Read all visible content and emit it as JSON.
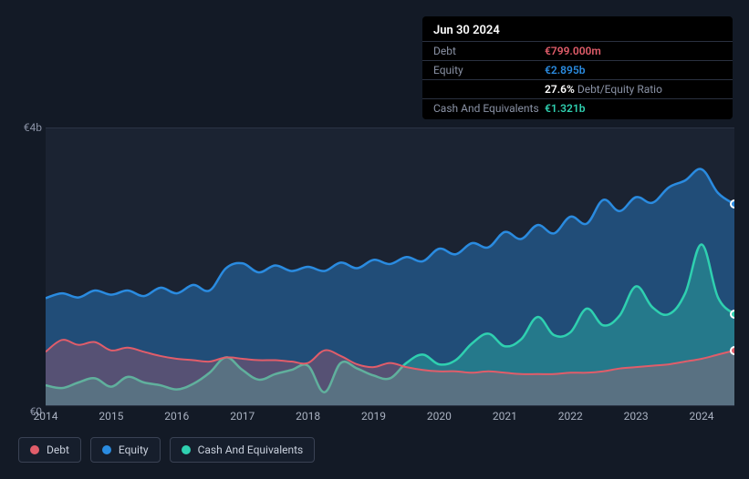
{
  "chart": {
    "type": "line-area",
    "background_color": "#131a26",
    "plot_background_color": "#1b2332",
    "grid_color": "#2b3444",
    "ymin": 0,
    "ymax": 4,
    "ylabels": {
      "top": "€4b",
      "bottom": "€0"
    },
    "xmin": 2014,
    "xmax": 2024.5,
    "xticks": [
      2014,
      2015,
      2016,
      2017,
      2018,
      2019,
      2020,
      2021,
      2022,
      2023,
      2024
    ],
    "series": {
      "debt": {
        "color": "#e15d6a",
        "fill_opacity": 0.28,
        "stroke_width": 2,
        "points": [
          [
            2014.0,
            0.78
          ],
          [
            2014.25,
            0.95
          ],
          [
            2014.5,
            0.88
          ],
          [
            2014.75,
            0.92
          ],
          [
            2015.0,
            0.8
          ],
          [
            2015.25,
            0.84
          ],
          [
            2015.5,
            0.78
          ],
          [
            2015.75,
            0.72
          ],
          [
            2016.0,
            0.68
          ],
          [
            2016.25,
            0.66
          ],
          [
            2016.5,
            0.64
          ],
          [
            2016.75,
            0.7
          ],
          [
            2017.0,
            0.68
          ],
          [
            2017.25,
            0.66
          ],
          [
            2017.5,
            0.66
          ],
          [
            2017.75,
            0.64
          ],
          [
            2018.0,
            0.62
          ],
          [
            2018.25,
            0.8
          ],
          [
            2018.5,
            0.72
          ],
          [
            2018.75,
            0.6
          ],
          [
            2019.0,
            0.56
          ],
          [
            2019.25,
            0.62
          ],
          [
            2019.5,
            0.56
          ],
          [
            2019.75,
            0.52
          ],
          [
            2020.0,
            0.5
          ],
          [
            2020.25,
            0.5
          ],
          [
            2020.5,
            0.48
          ],
          [
            2020.75,
            0.5
          ],
          [
            2021.0,
            0.48
          ],
          [
            2021.25,
            0.46
          ],
          [
            2021.5,
            0.46
          ],
          [
            2021.75,
            0.46
          ],
          [
            2022.0,
            0.48
          ],
          [
            2022.25,
            0.48
          ],
          [
            2022.5,
            0.5
          ],
          [
            2022.75,
            0.54
          ],
          [
            2023.0,
            0.56
          ],
          [
            2023.25,
            0.58
          ],
          [
            2023.5,
            0.6
          ],
          [
            2023.75,
            0.64
          ],
          [
            2024.0,
            0.68
          ],
          [
            2024.25,
            0.74
          ],
          [
            2024.5,
            0.8
          ]
        ]
      },
      "equity": {
        "color": "#2a8be0",
        "fill_opacity": 0.4,
        "stroke_width": 2.5,
        "points": [
          [
            2014.0,
            1.55
          ],
          [
            2014.25,
            1.62
          ],
          [
            2014.5,
            1.56
          ],
          [
            2014.75,
            1.66
          ],
          [
            2015.0,
            1.6
          ],
          [
            2015.25,
            1.66
          ],
          [
            2015.5,
            1.58
          ],
          [
            2015.75,
            1.7
          ],
          [
            2016.0,
            1.62
          ],
          [
            2016.25,
            1.74
          ],
          [
            2016.5,
            1.66
          ],
          [
            2016.75,
            1.98
          ],
          [
            2017.0,
            2.05
          ],
          [
            2017.25,
            1.92
          ],
          [
            2017.5,
            2.02
          ],
          [
            2017.75,
            1.94
          ],
          [
            2018.0,
            2.0
          ],
          [
            2018.25,
            1.94
          ],
          [
            2018.5,
            2.06
          ],
          [
            2018.75,
            1.98
          ],
          [
            2019.0,
            2.1
          ],
          [
            2019.25,
            2.04
          ],
          [
            2019.5,
            2.14
          ],
          [
            2019.75,
            2.08
          ],
          [
            2020.0,
            2.26
          ],
          [
            2020.25,
            2.18
          ],
          [
            2020.5,
            2.34
          ],
          [
            2020.75,
            2.28
          ],
          [
            2021.0,
            2.5
          ],
          [
            2021.25,
            2.4
          ],
          [
            2021.5,
            2.6
          ],
          [
            2021.75,
            2.48
          ],
          [
            2022.0,
            2.72
          ],
          [
            2022.25,
            2.62
          ],
          [
            2022.5,
            2.96
          ],
          [
            2022.75,
            2.8
          ],
          [
            2023.0,
            3.0
          ],
          [
            2023.25,
            2.92
          ],
          [
            2023.5,
            3.14
          ],
          [
            2023.75,
            3.24
          ],
          [
            2024.0,
            3.4
          ],
          [
            2024.25,
            3.06
          ],
          [
            2024.5,
            2.9
          ]
        ]
      },
      "cash": {
        "color": "#2fd0b0",
        "fill_opacity": 0.34,
        "stroke_width": 2.5,
        "points": [
          [
            2014.0,
            0.3
          ],
          [
            2014.25,
            0.26
          ],
          [
            2014.5,
            0.34
          ],
          [
            2014.75,
            0.4
          ],
          [
            2015.0,
            0.28
          ],
          [
            2015.25,
            0.42
          ],
          [
            2015.5,
            0.34
          ],
          [
            2015.75,
            0.3
          ],
          [
            2016.0,
            0.24
          ],
          [
            2016.25,
            0.32
          ],
          [
            2016.5,
            0.48
          ],
          [
            2016.75,
            0.7
          ],
          [
            2017.0,
            0.52
          ],
          [
            2017.25,
            0.38
          ],
          [
            2017.5,
            0.46
          ],
          [
            2017.75,
            0.52
          ],
          [
            2018.0,
            0.58
          ],
          [
            2018.25,
            0.2
          ],
          [
            2018.5,
            0.62
          ],
          [
            2018.75,
            0.54
          ],
          [
            2019.0,
            0.44
          ],
          [
            2019.25,
            0.4
          ],
          [
            2019.5,
            0.62
          ],
          [
            2019.75,
            0.74
          ],
          [
            2020.0,
            0.6
          ],
          [
            2020.25,
            0.66
          ],
          [
            2020.5,
            0.9
          ],
          [
            2020.75,
            1.04
          ],
          [
            2021.0,
            0.86
          ],
          [
            2021.25,
            0.96
          ],
          [
            2021.5,
            1.28
          ],
          [
            2021.75,
            1.02
          ],
          [
            2022.0,
            1.06
          ],
          [
            2022.25,
            1.4
          ],
          [
            2022.5,
            1.16
          ],
          [
            2022.75,
            1.3
          ],
          [
            2023.0,
            1.72
          ],
          [
            2023.25,
            1.42
          ],
          [
            2023.5,
            1.32
          ],
          [
            2023.75,
            1.62
          ],
          [
            2024.0,
            2.32
          ],
          [
            2024.25,
            1.56
          ],
          [
            2024.5,
            1.32
          ]
        ]
      }
    }
  },
  "tooltip": {
    "date": "Jun 30 2024",
    "rows": {
      "debt": {
        "label": "Debt",
        "value": "€799.000m"
      },
      "equity": {
        "label": "Equity",
        "value": "€2.895b"
      },
      "ratio": {
        "value": "27.6%",
        "suffix": "Debt/Equity Ratio"
      },
      "cash": {
        "label": "Cash And Equivalents",
        "value": "€1.321b"
      }
    }
  },
  "legend": {
    "debt": "Debt",
    "equity": "Equity",
    "cash": "Cash And Equivalents"
  }
}
